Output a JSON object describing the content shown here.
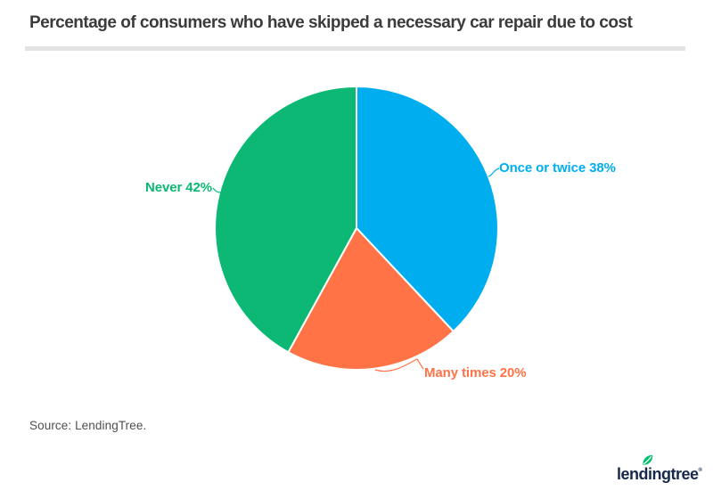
{
  "header": {
    "title": "Percentage of consumers who have skipped a necessary car repair due to cost"
  },
  "chart_data": {
    "type": "pie",
    "title": "Percentage of consumers who have skipped a necessary car repair due to cost",
    "start_angle_deg": 0,
    "direction": "clockwise",
    "legend_position": "none",
    "slices": [
      {
        "id": "once-or-twice",
        "label": "Once or twice",
        "value": 38,
        "display": "Once or twice 38%",
        "color": "#00aeef"
      },
      {
        "id": "many-times",
        "label": "Many times",
        "value": 20,
        "display": "Many times 20%",
        "color": "#ff7347"
      },
      {
        "id": "never",
        "label": "Never",
        "value": 42,
        "display": "Never 42%",
        "color": "#0cb873"
      }
    ]
  },
  "footer": {
    "source": "Source: LendingTree."
  },
  "logo": {
    "text": "lendingtree",
    "registered": "®",
    "leaf_color": "#00c06d",
    "text_color": "#16294a"
  }
}
